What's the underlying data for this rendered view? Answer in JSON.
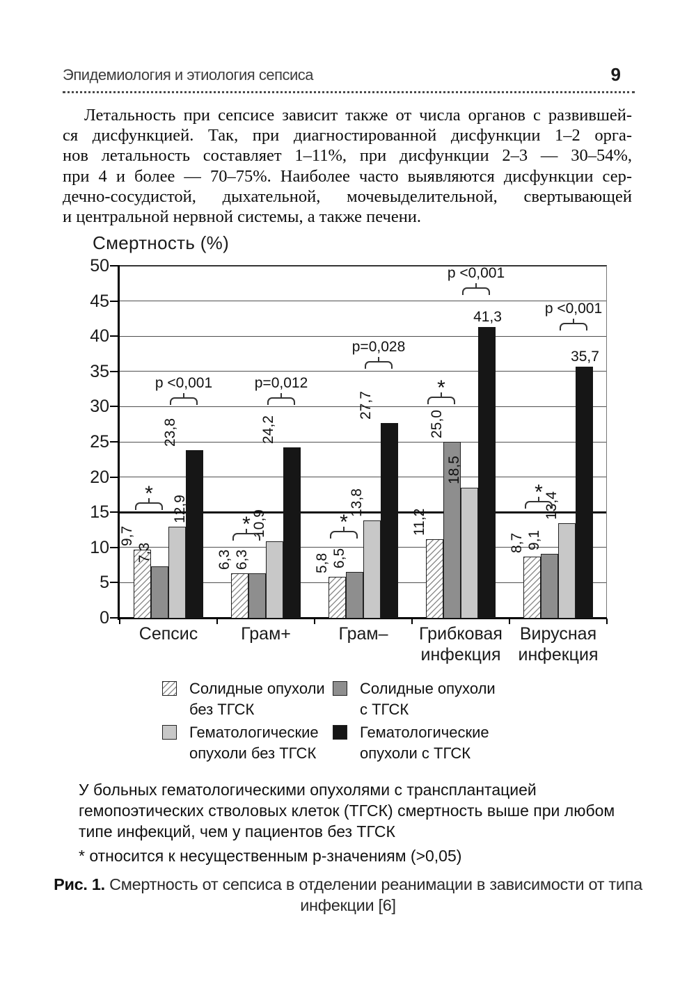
{
  "header": {
    "title": "Эпидемиология и этиология сепсиса",
    "page_number": "9"
  },
  "paragraph": {
    "lines": [
      "Летальность при сепсисе зависит также от числа органов с развившей-",
      "ся дисфункцией. Так, при диагностированной дисфункции 1–2 орга-",
      "нов летальность составляет 1–11%, при дисфункции 2–3 — 30–54%,",
      "при 4 и более — 70–75%. Наиболее часто выявляются дисфункции сер-",
      "дечно-сосудистой, дыхательной, мочевыделительной, свертывающей",
      "и центральной нервной системы, а также печени."
    ]
  },
  "chart_data": {
    "type": "bar",
    "title": "Смертность (%)",
    "xlabel": "",
    "ylabel": "Смертность (%)",
    "ylim": [
      0,
      50
    ],
    "ytick_step": 5,
    "grid": true,
    "legend_position": "bottom",
    "categories": [
      "Сепсис",
      "Грам+",
      "Грам–",
      "Грибковая инфекция",
      "Вирусная инфекция"
    ],
    "series": [
      {
        "name": "Солидные опухоли без ТГСК",
        "style": "hatched",
        "values": [
          9.7,
          6.3,
          5.8,
          11.2,
          8.7
        ],
        "labels": [
          "9,7",
          "6,3",
          "5,8",
          "11,2",
          "8,7"
        ]
      },
      {
        "name": "Солидные опухоли с ТГСК",
        "style": "dark-gray",
        "values": [
          7.3,
          6.3,
          6.5,
          25.0,
          9.1
        ],
        "labels": [
          "7,3",
          "6,3",
          "6,5",
          "25,0",
          "9,1"
        ]
      },
      {
        "name": "Гематологические опухоли без ТГСК",
        "style": "light-gray",
        "values": [
          12.9,
          10.9,
          13.8,
          18.5,
          13.4
        ],
        "labels": [
          "12,9",
          "10,9",
          "13,8",
          "18,5",
          "13,4"
        ]
      },
      {
        "name": "Гематологические опухоли с ТГСК",
        "style": "black",
        "values": [
          23.8,
          24.2,
          27.7,
          41.3,
          35.7
        ],
        "labels": [
          "23,8",
          "24,2",
          "27,7",
          "41,3",
          "35,7"
        ]
      }
    ],
    "palette": {
      "hatched_line": "#8f8f8f",
      "dark_gray": "#8e8e8e",
      "light_gray": "#c8c8c8",
      "black": "#161616"
    },
    "annotations": {
      "p_values": [
        "p <0,001",
        "p=0,012",
        "p=0,028",
        "p <0,001",
        "p <0,001"
      ],
      "star_symbol": "*",
      "star_groups": [
        true,
        true,
        true,
        true,
        true
      ]
    }
  },
  "legend": {
    "items": [
      {
        "label": "Солидные опухоли без ТГСК",
        "style": "hatched"
      },
      {
        "label": "Солидные опухоли с ТГСК",
        "style": "dark-gray"
      },
      {
        "label": "Гематологические опухоли без ТГСК",
        "style": "light-gray"
      },
      {
        "label": "Гематологические опухоли с ТГСК",
        "style": "black"
      }
    ]
  },
  "note": {
    "lines": [
      "У больных гематологическими опухолями с трансплантацией",
      "гемопоэтических стволовых клеток (ТГСК) смертность выше при любом",
      "типе инфекций, чем у пациентов без ТГСК"
    ]
  },
  "footnote": "* относится к несущественным p-значениям (>0,05)",
  "caption": {
    "prefix": "Рис. 1.",
    "line1_rest": " Смертность от сепсиса в отделении реанимации в зависимости от типа",
    "line2": "инфекции [6]"
  }
}
